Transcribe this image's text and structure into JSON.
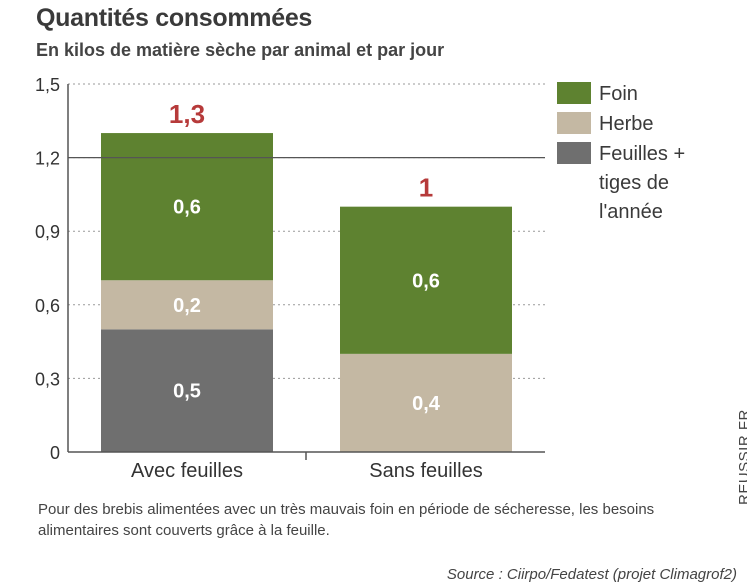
{
  "chart_data": {
    "type": "bar",
    "stacked": true,
    "title": "Quantités consommées",
    "subtitle": "En kilos de matière sèche par animal et par jour",
    "categories": [
      "Avec feuilles",
      "Sans feuilles"
    ],
    "series": [
      {
        "name": "Feuilles + tiges de l'année",
        "legend_lines": [
          "Feuilles +",
          "tiges de",
          "l'année"
        ],
        "color": "#6f6f6f",
        "values": [
          0.5,
          0
        ],
        "labels": [
          "0,5",
          ""
        ]
      },
      {
        "name": "Herbe",
        "legend_lines": [
          "Herbe"
        ],
        "color": "#c4b8a3",
        "values": [
          0.2,
          0.4
        ],
        "labels": [
          "0,2",
          "0,4"
        ]
      },
      {
        "name": "Foin",
        "legend_lines": [
          "Foin"
        ],
        "color": "#5e8230",
        "values": [
          0.6,
          0.6
        ],
        "labels": [
          "0,6",
          "0,6"
        ]
      }
    ],
    "legend_order": [
      2,
      1,
      0
    ],
    "totals": [
      1.3,
      1.0
    ],
    "total_labels": [
      "1,3",
      "1"
    ],
    "yticks": [
      0,
      0.3,
      0.6,
      0.9,
      1.2,
      1.5
    ],
    "ytick_labels": [
      "0",
      "0,3",
      "0,6",
      "0,9",
      "1,2",
      "1,5"
    ],
    "ylim": [
      0,
      1.5
    ],
    "reference_line": 1.2,
    "xlabel": "",
    "ylabel": "",
    "legend_position": "top-right"
  },
  "note": "Pour des brebis alimentées avec un très mauvais foin en période de sécheresse, les besoins alimentaires sont couverts grâce à la feuille.",
  "source": "Source : Ciirpo/Fedatest (projet Climagrof2)",
  "credit": "REUSSIR.FR"
}
